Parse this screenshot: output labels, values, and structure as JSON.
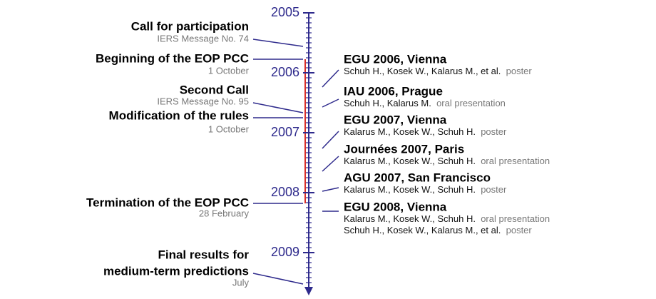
{
  "axis": {
    "years": [
      "2005",
      "2006",
      "2007",
      "2008",
      "2009"
    ]
  },
  "left_events": [
    {
      "title": [
        "Call for participation"
      ],
      "subtitle": "IERS Message No. 74"
    },
    {
      "title": [
        "Beginning of the EOP PCC"
      ],
      "subtitle": "1 October"
    },
    {
      "title": [
        "Second Call"
      ],
      "subtitle": "IERS Message No. 95"
    },
    {
      "title": [
        "Modification of the rules"
      ],
      "subtitle": "1 October"
    },
    {
      "title": [
        "Termination of the EOP PCC"
      ],
      "subtitle": "28 February"
    },
    {
      "title": [
        "Final results for",
        "medium-term predictions"
      ],
      "subtitle": "July"
    }
  ],
  "right_events": [
    {
      "title": "EGU 2006, Vienna",
      "entries": [
        {
          "authors": "Schuh H., Kosek W., Kalarus M., et al.",
          "type": "poster"
        }
      ]
    },
    {
      "title": "IAU 2006, Prague",
      "entries": [
        {
          "authors": "Schuh H., Kalarus M.",
          "type": "oral presentation"
        }
      ]
    },
    {
      "title": "EGU 2007, Vienna",
      "entries": [
        {
          "authors": "Kalarus M., Kosek W., Schuh H.",
          "type": "poster"
        }
      ]
    },
    {
      "title": "Journées 2007, Paris",
      "entries": [
        {
          "authors": "Kalarus M., Kosek W., Schuh H.",
          "type": "oral presentation"
        }
      ]
    },
    {
      "title": "AGU 2007, San Francisco",
      "entries": [
        {
          "authors": "Kalarus M., Kosek W., Schuh H.",
          "type": "poster"
        }
      ]
    },
    {
      "title": "EGU 2008, Vienna",
      "entries": [
        {
          "authors": "Kalarus M., Kosek W., Schuh H.",
          "type": "oral presentation"
        },
        {
          "authors": "Schuh H., Kosek W., Kalarus M., et al.",
          "type": "poster"
        }
      ]
    }
  ]
}
